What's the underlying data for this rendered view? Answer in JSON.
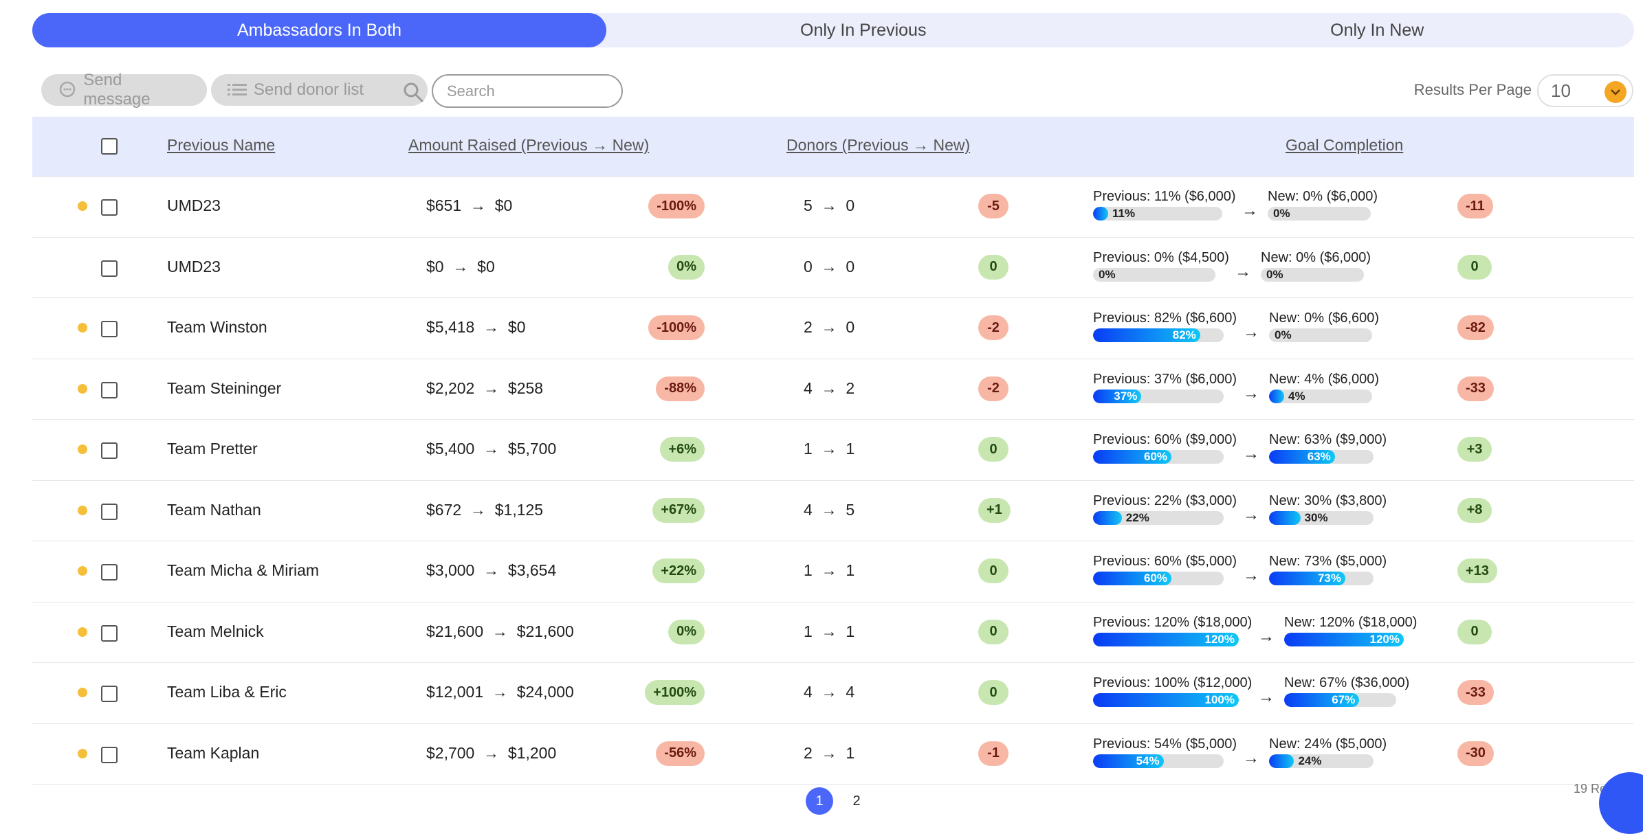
{
  "tabs": [
    {
      "label": "Ambassadors In Both",
      "active": true
    },
    {
      "label": "Only In Previous",
      "active": false
    },
    {
      "label": "Only In New",
      "active": false
    }
  ],
  "toolbar": {
    "send_message": "Send message",
    "send_donor_list": "Send donor list",
    "search_placeholder": "Search",
    "results_per_page_label": "Results Per Page",
    "results_per_page_value": "10"
  },
  "table": {
    "headers": {
      "name": "Previous Name",
      "amount": "Amount Raised (Previous → New)",
      "donors": "Donors (Previous → New)",
      "goal": "Goal Completion"
    },
    "rows": [
      {
        "flag": true,
        "name": "UMD23",
        "amt_prev": "$651",
        "amt_new": "$0",
        "amt_change": "-100%",
        "don_prev": "5",
        "don_new": "0",
        "don_change": "-5",
        "goal_prev_label": "Previous: 11% ($6,000)",
        "goal_prev_pct": 11,
        "goal_prev_text": "11%",
        "goal_new_label": "New: 0% ($6,000)",
        "goal_new_pct": 0,
        "goal_new_text": "0%",
        "goal_change": "-11"
      },
      {
        "flag": false,
        "name": "UMD23",
        "amt_prev": "$0",
        "amt_new": "$0",
        "amt_change": "0%",
        "don_prev": "0",
        "don_new": "0",
        "don_change": "0",
        "goal_prev_label": "Previous: 0% ($4,500)",
        "goal_prev_pct": 0,
        "goal_prev_text": "0%",
        "goal_new_label": "New: 0% ($6,000)",
        "goal_new_pct": 0,
        "goal_new_text": "0%",
        "goal_change": "0"
      },
      {
        "flag": true,
        "name": "Team Winston",
        "amt_prev": "$5,418",
        "amt_new": "$0",
        "amt_change": "-100%",
        "don_prev": "2",
        "don_new": "0",
        "don_change": "-2",
        "goal_prev_label": "Previous: 82% ($6,600)",
        "goal_prev_pct": 82,
        "goal_prev_text": "82%",
        "goal_new_label": "New: 0% ($6,600)",
        "goal_new_pct": 0,
        "goal_new_text": "0%",
        "goal_change": "-82"
      },
      {
        "flag": true,
        "name": "Team Steininger",
        "amt_prev": "$2,202",
        "amt_new": "$258",
        "amt_change": "-88%",
        "don_prev": "4",
        "don_new": "2",
        "don_change": "-2",
        "goal_prev_label": "Previous: 37% ($6,000)",
        "goal_prev_pct": 37,
        "goal_prev_text": "37%",
        "goal_new_label": "New: 4% ($6,000)",
        "goal_new_pct": 4,
        "goal_new_text": "4%",
        "goal_change": "-33"
      },
      {
        "flag": true,
        "name": "Team Pretter",
        "amt_prev": "$5,400",
        "amt_new": "$5,700",
        "amt_change": "+6%",
        "don_prev": "1",
        "don_new": "1",
        "don_change": "0",
        "goal_prev_label": "Previous: 60% ($9,000)",
        "goal_prev_pct": 60,
        "goal_prev_text": "60%",
        "goal_new_label": "New: 63% ($9,000)",
        "goal_new_pct": 63,
        "goal_new_text": "63%",
        "goal_change": "+3"
      },
      {
        "flag": true,
        "name": "Team Nathan",
        "amt_prev": "$672",
        "amt_new": "$1,125",
        "amt_change": "+67%",
        "don_prev": "4",
        "don_new": "5",
        "don_change": "+1",
        "goal_prev_label": "Previous: 22% ($3,000)",
        "goal_prev_pct": 22,
        "goal_prev_text": "22%",
        "goal_new_label": "New: 30% ($3,800)",
        "goal_new_pct": 30,
        "goal_new_text": "30%",
        "goal_change": "+8"
      },
      {
        "flag": true,
        "name": "Team Micha & Miriam",
        "amt_prev": "$3,000",
        "amt_new": "$3,654",
        "amt_change": "+22%",
        "don_prev": "1",
        "don_new": "1",
        "don_change": "0",
        "goal_prev_label": "Previous: 60% ($5,000)",
        "goal_prev_pct": 60,
        "goal_prev_text": "60%",
        "goal_new_label": "New: 73% ($5,000)",
        "goal_new_pct": 73,
        "goal_new_text": "73%",
        "goal_change": "+13"
      },
      {
        "flag": true,
        "name": "Team Melnick",
        "amt_prev": "$21,600",
        "amt_new": "$21,600",
        "amt_change": "0%",
        "don_prev": "1",
        "don_new": "1",
        "don_change": "0",
        "goal_prev_label": "Previous: 120% ($18,000)",
        "goal_prev_pct": 120,
        "goal_prev_text": "120%",
        "goal_new_label": "New: 120% ($18,000)",
        "goal_new_pct": 120,
        "goal_new_text": "120%",
        "goal_change": "0"
      },
      {
        "flag": true,
        "name": "Team Liba & Eric",
        "amt_prev": "$12,001",
        "amt_new": "$24,000",
        "amt_change": "+100%",
        "don_prev": "4",
        "don_new": "4",
        "don_change": "0",
        "goal_prev_label": "Previous: 100% ($12,000)",
        "goal_prev_pct": 100,
        "goal_prev_text": "100%",
        "goal_new_label": "New: 67% ($36,000)",
        "goal_new_pct": 67,
        "goal_new_text": "67%",
        "goal_change": "-33"
      },
      {
        "flag": true,
        "name": "Team Kaplan",
        "amt_prev": "$2,700",
        "amt_new": "$1,200",
        "amt_change": "-56%",
        "don_prev": "2",
        "don_new": "1",
        "don_change": "-1",
        "goal_prev_label": "Previous: 54% ($5,000)",
        "goal_prev_pct": 54,
        "goal_prev_text": "54%",
        "goal_new_label": "New: 24% ($5,000)",
        "goal_new_pct": 24,
        "goal_new_text": "24%",
        "goal_change": "-30"
      }
    ]
  },
  "pagination": {
    "pages": [
      "1",
      "2"
    ],
    "current": "1",
    "results_text": "19 Resul"
  },
  "colors": {
    "accent": "#4a67fa",
    "flag": "#f5bf3a",
    "negative": "#f8b7a5",
    "positive": "#c8e6b0",
    "select_chevron": "#f5a623"
  },
  "icons": {
    "message": "chat-bubble-icon",
    "list": "list-icon",
    "search": "search-icon",
    "chevron": "chevron-down-icon",
    "arrow": "right-arrow-icon",
    "flag": "dot-icon",
    "chat": "chat-icon"
  }
}
